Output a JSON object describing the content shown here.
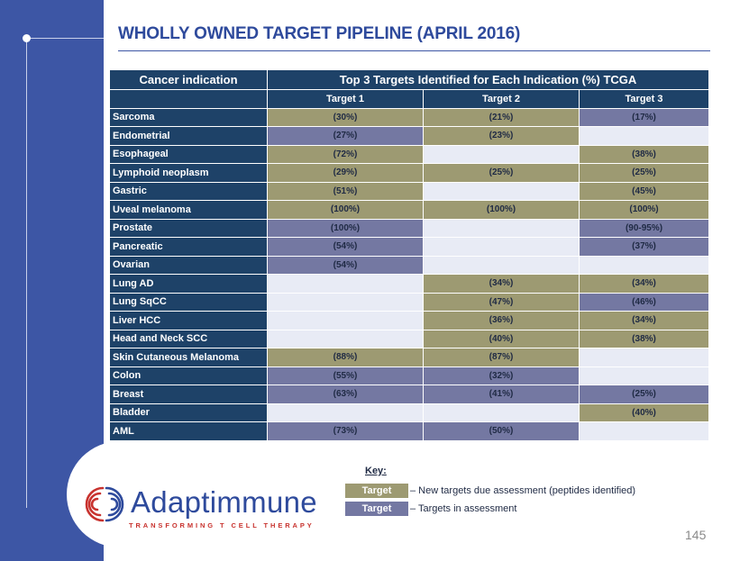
{
  "title": "WHOLLY OWNED TARGET PIPELINE (APRIL 2016)",
  "table": {
    "indication_header": "Cancer indication",
    "group_header": "Top 3 Targets Identified for Each Indication (%) TCGA",
    "target_headers": [
      "Target 1",
      "Target 2",
      "Target 3"
    ],
    "rows": [
      {
        "name": "Sarcoma",
        "cells": [
          {
            "v": "(30%)",
            "s": "new"
          },
          {
            "v": "(21%)",
            "s": "new"
          },
          {
            "v": "(17%)",
            "s": "assess"
          }
        ]
      },
      {
        "name": "Endometrial",
        "cells": [
          {
            "v": "(27%)",
            "s": "assess"
          },
          {
            "v": "(23%)",
            "s": "new"
          },
          {
            "v": "",
            "s": "empty"
          }
        ]
      },
      {
        "name": "Esophageal",
        "cells": [
          {
            "v": "(72%)",
            "s": "new"
          },
          {
            "v": "",
            "s": "empty"
          },
          {
            "v": "(38%)",
            "s": "new"
          }
        ]
      },
      {
        "name": "Lymphoid neoplasm",
        "cells": [
          {
            "v": "(29%)",
            "s": "new"
          },
          {
            "v": "(25%)",
            "s": "new"
          },
          {
            "v": "(25%)",
            "s": "new"
          }
        ]
      },
      {
        "name": "Gastric",
        "cells": [
          {
            "v": "(51%)",
            "s": "new"
          },
          {
            "v": "",
            "s": "empty"
          },
          {
            "v": "(45%)",
            "s": "new"
          }
        ]
      },
      {
        "name": "Uveal melanoma",
        "cells": [
          {
            "v": "(100%)",
            "s": "new"
          },
          {
            "v": "(100%)",
            "s": "new"
          },
          {
            "v": "(100%)",
            "s": "new"
          }
        ]
      },
      {
        "name": "Prostate",
        "cells": [
          {
            "v": "(100%)",
            "s": "assess"
          },
          {
            "v": "",
            "s": "empty"
          },
          {
            "v": "(90-95%)",
            "s": "assess"
          }
        ]
      },
      {
        "name": "Pancreatic",
        "cells": [
          {
            "v": "(54%)",
            "s": "assess"
          },
          {
            "v": "",
            "s": "empty"
          },
          {
            "v": "(37%)",
            "s": "assess"
          }
        ]
      },
      {
        "name": "Ovarian",
        "cells": [
          {
            "v": "(54%)",
            "s": "assess"
          },
          {
            "v": "",
            "s": "empty"
          },
          {
            "v": "",
            "s": "empty"
          }
        ]
      },
      {
        "name": "Lung AD",
        "cells": [
          {
            "v": "",
            "s": "empty"
          },
          {
            "v": "(34%)",
            "s": "new"
          },
          {
            "v": "(34%)",
            "s": "new"
          }
        ]
      },
      {
        "name": "Lung SqCC",
        "cells": [
          {
            "v": "",
            "s": "empty"
          },
          {
            "v": "(47%)",
            "s": "new"
          },
          {
            "v": "(46%)",
            "s": "assess"
          }
        ]
      },
      {
        "name": "Liver HCC",
        "cells": [
          {
            "v": "",
            "s": "empty"
          },
          {
            "v": "(36%)",
            "s": "new"
          },
          {
            "v": "(34%)",
            "s": "new"
          }
        ]
      },
      {
        "name": "Head and Neck SCC",
        "cells": [
          {
            "v": "",
            "s": "empty"
          },
          {
            "v": "(40%)",
            "s": "new"
          },
          {
            "v": "(38%)",
            "s": "new"
          }
        ]
      },
      {
        "name": "Skin Cutaneous Melanoma",
        "cells": [
          {
            "v": "(88%)",
            "s": "new"
          },
          {
            "v": "(87%)",
            "s": "new"
          },
          {
            "v": "",
            "s": "empty"
          }
        ]
      },
      {
        "name": "Colon",
        "cells": [
          {
            "v": "(55%)",
            "s": "assess"
          },
          {
            "v": "(32%)",
            "s": "assess"
          },
          {
            "v": "",
            "s": "empty"
          }
        ]
      },
      {
        "name": "Breast",
        "cells": [
          {
            "v": "(63%)",
            "s": "assess"
          },
          {
            "v": "(41%)",
            "s": "assess"
          },
          {
            "v": "(25%)",
            "s": "assess"
          }
        ]
      },
      {
        "name": "Bladder",
        "cells": [
          {
            "v": "",
            "s": "empty"
          },
          {
            "v": "",
            "s": "empty"
          },
          {
            "v": "(40%)",
            "s": "new"
          }
        ]
      },
      {
        "name": "AML",
        "cells": [
          {
            "v": "(73%)",
            "s": "assess"
          },
          {
            "v": "(50%)",
            "s": "assess"
          },
          {
            "v": "",
            "s": "empty"
          }
        ]
      }
    ]
  },
  "key": {
    "title": "Key:",
    "items": [
      {
        "label": "Target",
        "desc": "– New targets due assessment (peptides identified)",
        "s": "new"
      },
      {
        "label": "Target",
        "desc": "– Targets in assessment",
        "s": "assess"
      }
    ]
  },
  "logo": {
    "name": "Adaptimmune",
    "tagline": "TRANSFORMING T CELL THERAPY"
  },
  "page_number": "145",
  "colors": {
    "sidebar": "#3d56a5",
    "header": "#1e4268",
    "new_target": "#9d9a72",
    "in_assessment": "#7478a2",
    "empty": "#e8ebf5",
    "logo_blue": "#2e4a9c",
    "logo_red": "#c8322e"
  }
}
